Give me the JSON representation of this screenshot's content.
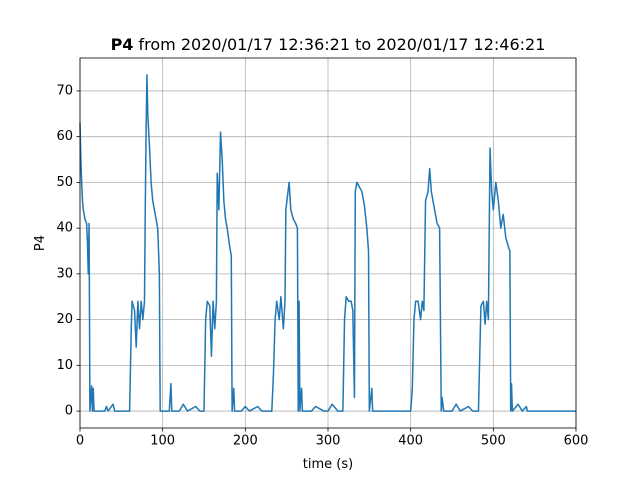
{
  "chart_data": {
    "type": "line",
    "title_prefix": "P4",
    "title": "from 2020/01/17 12:36:21 to 2020/01/17 12:46:21",
    "xlabel": "time (s)",
    "ylabel": "P4",
    "xlim": [
      0,
      600
    ],
    "ylim": [
      -3.7,
      77.2
    ],
    "xticks": [
      0,
      100,
      200,
      300,
      400,
      500,
      600
    ],
    "yticks": [
      0,
      10,
      20,
      30,
      40,
      50,
      60,
      70
    ],
    "grid": true,
    "series": [
      {
        "color": "#1f77b4",
        "x": [
          0,
          1,
          2,
          3,
          4,
          6,
          8,
          9,
          10,
          11,
          12,
          14,
          15,
          16,
          17,
          30,
          32,
          34,
          40,
          42,
          60,
          62,
          63,
          66,
          68,
          70,
          72,
          74,
          76,
          78,
          79,
          80,
          81,
          82,
          84,
          86,
          88,
          90,
          92,
          94,
          96,
          97,
          100,
          108,
          110,
          111,
          120,
          125,
          130,
          140,
          145,
          150,
          152,
          154,
          157,
          159,
          161,
          163,
          165,
          166,
          168,
          170,
          172,
          174,
          176,
          178,
          181,
          183,
          184,
          186,
          187,
          195,
          200,
          205,
          215,
          220,
          232,
          234,
          236,
          238,
          241,
          243,
          246,
          248,
          249,
          251,
          253,
          255,
          258,
          261,
          263,
          264,
          265,
          266,
          268,
          269,
          280,
          285,
          295,
          300,
          305,
          312,
          318,
          320,
          322,
          325,
          328,
          330,
          332,
          333,
          335,
          338,
          341,
          344,
          347,
          349,
          350,
          353,
          354,
          370,
          400,
          402,
          404,
          406,
          409,
          412,
          414,
          416,
          418,
          421,
          423,
          425,
          428,
          432,
          435,
          437,
          438,
          440,
          450,
          455,
          460,
          470,
          475,
          482,
          485,
          488,
          490,
          492,
          494,
          496,
          498,
          500,
          503,
          506,
          509,
          512,
          515,
          518,
          520,
          521,
          522,
          523,
          530,
          535,
          540,
          541,
          600
        ],
        "values": [
          63,
          55,
          50,
          46,
          44,
          42,
          41,
          37,
          30,
          41,
          0,
          5.5,
          0,
          5,
          0,
          0,
          1,
          0,
          1.5,
          0,
          0,
          18,
          24,
          22,
          14,
          24,
          18,
          24,
          20,
          24,
          45,
          62,
          73.5,
          65,
          58,
          50,
          46,
          44,
          42,
          40,
          30,
          0,
          0,
          0,
          6,
          0,
          0,
          1.5,
          0,
          1,
          0,
          0,
          20,
          24,
          23,
          12,
          24,
          18,
          24,
          52,
          44,
          61,
          55,
          46,
          42,
          40,
          36,
          34,
          0,
          5,
          0,
          0,
          1,
          0,
          1,
          0,
          0,
          8,
          20,
          24,
          20,
          25,
          18,
          24,
          44,
          47,
          50,
          44,
          42,
          41,
          40,
          0,
          24,
          0,
          5,
          0,
          0,
          1,
          0,
          0,
          1.5,
          0,
          0,
          20,
          25,
          24,
          24,
          22,
          3,
          48,
          50,
          49,
          48,
          45,
          40,
          35,
          0,
          5,
          0,
          0,
          0,
          5,
          20,
          24,
          24,
          20,
          24,
          22,
          46,
          48,
          53,
          48,
          45,
          41,
          40,
          0,
          3,
          0,
          0,
          1.5,
          0,
          1,
          0,
          0,
          23,
          24,
          19,
          24,
          20,
          57.5,
          48,
          44,
          50,
          46,
          40,
          43,
          38,
          36,
          35,
          0,
          6,
          0,
          1.5,
          0,
          1,
          0,
          0
        ]
      }
    ]
  }
}
